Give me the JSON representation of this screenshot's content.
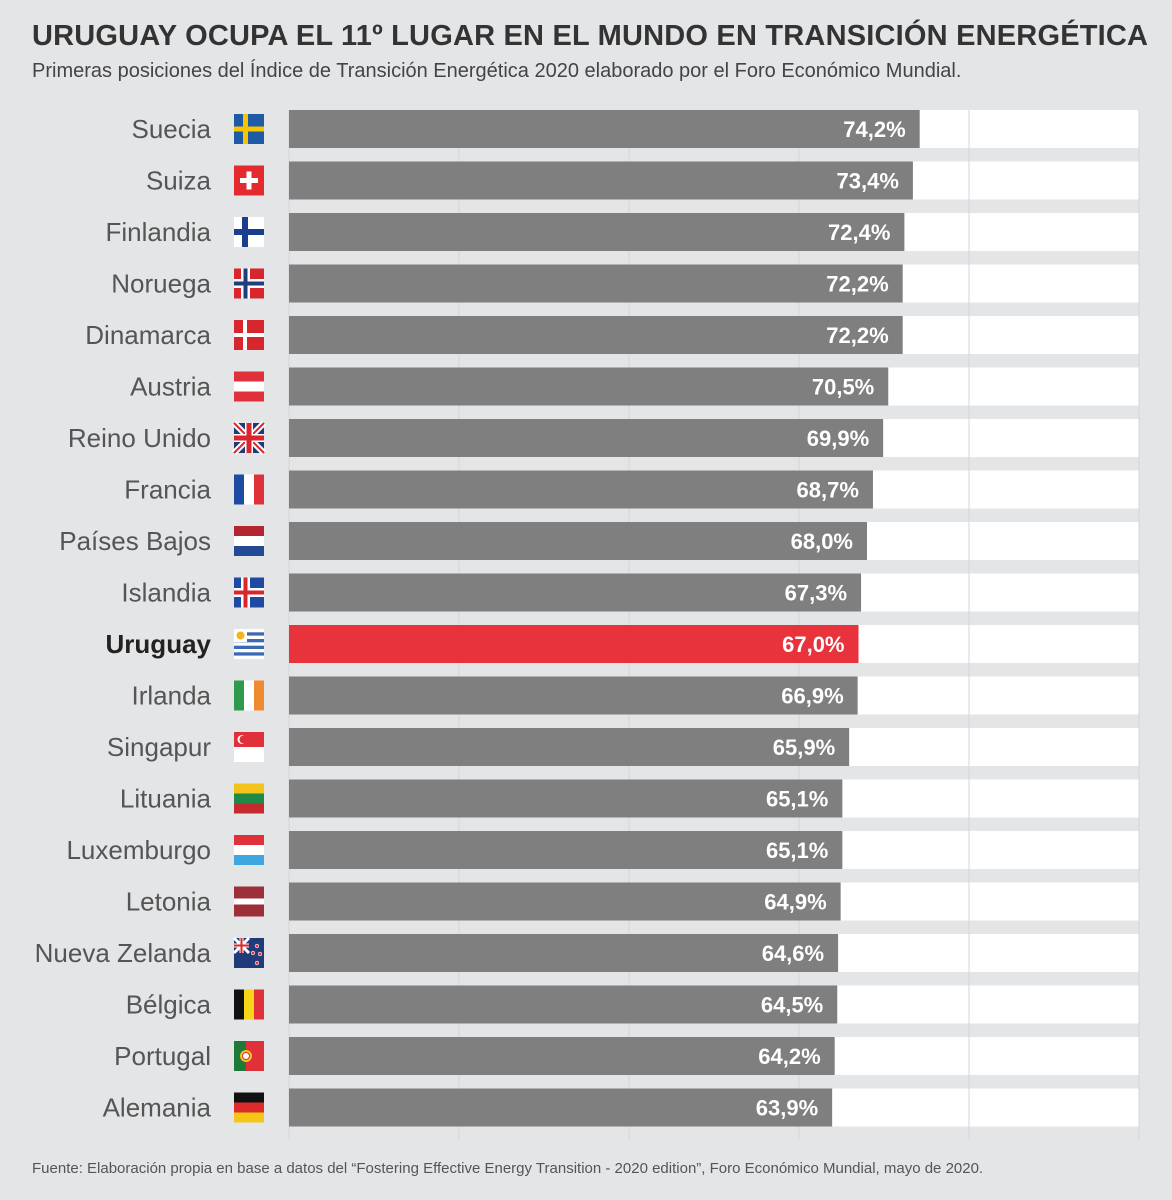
{
  "title": "URUGUAY OCUPA EL 11º LUGAR EN EL MUNDO EN TRANSICIÓN ENERGÉTICA",
  "subtitle": "Primeras posiciones del Índice de Transición Energética 2020 elaborado por el Foro Económico Mundial.",
  "source": "Fuente: Elaboración propia en base a datos del “Fostering Effective Energy Transition - 2020 edition”, Foro Económico Mundial, mayo de 2020.",
  "colors": {
    "bar": "#7f7f7f",
    "highlight": "#e8323c",
    "track": "#ffffff",
    "background": "#e4e5e7"
  },
  "chart_data": {
    "type": "bar",
    "orientation": "horizontal",
    "xlim": [
      0,
      100
    ],
    "grid": true,
    "highlight": "Uruguay",
    "categories": [
      "Suecia",
      "Suiza",
      "Finlandia",
      "Noruega",
      "Dinamarca",
      "Austria",
      "Reino Unido",
      "Francia",
      "Países Bajos",
      "Islandia",
      "Uruguay",
      "Irlanda",
      "Singapur",
      "Lituania",
      "Luxemburgo",
      "Letonia",
      "Nueva Zelanda",
      "Bélgica",
      "Portugal",
      "Alemania"
    ],
    "values": [
      74.2,
      73.4,
      72.4,
      72.2,
      72.2,
      70.5,
      69.9,
      68.7,
      68.0,
      67.3,
      67.0,
      66.9,
      65.9,
      65.1,
      65.1,
      64.9,
      64.6,
      64.5,
      64.2,
      63.9
    ],
    "value_labels": [
      "74,2%",
      "73,4%",
      "72,4%",
      "72,2%",
      "72,2%",
      "70,5%",
      "69,9%",
      "68,7%",
      "68,0%",
      "67,3%",
      "67,0%",
      "66,9%",
      "65,9%",
      "65,1%",
      "65,1%",
      "64,9%",
      "64,6%",
      "64,5%",
      "64,2%",
      "63,9%"
    ],
    "flags": [
      "sweden-flag-icon",
      "switzerland-flag-icon",
      "finland-flag-icon",
      "norway-flag-icon",
      "denmark-flag-icon",
      "austria-flag-icon",
      "uk-flag-icon",
      "france-flag-icon",
      "netherlands-flag-icon",
      "iceland-flag-icon",
      "uruguay-flag-icon",
      "ireland-flag-icon",
      "singapore-flag-icon",
      "lithuania-flag-icon",
      "luxembourg-flag-icon",
      "latvia-flag-icon",
      "new-zealand-flag-icon",
      "belgium-flag-icon",
      "portugal-flag-icon",
      "germany-flag-icon"
    ]
  }
}
